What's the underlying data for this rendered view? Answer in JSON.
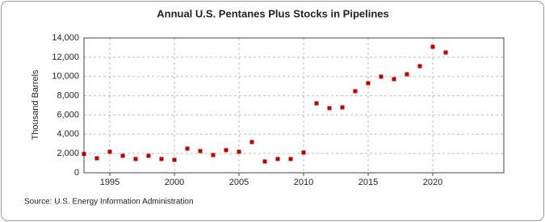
{
  "chart_data": {
    "type": "scatter",
    "title": "Annual U.S. Pentanes Plus Stocks in Pipelines",
    "y_label": "Thousand Barrels",
    "source": "Source: U.S. Energy Information Administration",
    "color": "#c00000",
    "grid": true,
    "x": [
      1993,
      1994,
      1995,
      1996,
      1997,
      1998,
      1999,
      2000,
      2001,
      2002,
      2003,
      2004,
      2005,
      2006,
      2007,
      2008,
      2009,
      2010,
      2011,
      2012,
      2013,
      2014,
      2015,
      2016,
      2017,
      2018,
      2019,
      2020,
      2021
    ],
    "values": [
      1950,
      1500,
      2180,
      1760,
      1430,
      1760,
      1430,
      1340,
      2510,
      2260,
      1840,
      2350,
      2180,
      3190,
      1170,
      1430,
      1430,
      2100,
      7210,
      6710,
      6790,
      8470,
      9300,
      9980,
      9720,
      10230,
      11070,
      13080,
      12490
    ],
    "xlim": [
      1993,
      2025.5
    ],
    "xticks": [
      1995,
      2000,
      2005,
      2010,
      2015,
      2020
    ],
    "ylim": [
      0,
      14000
    ],
    "yticks": [
      0,
      {
        "value": 2000,
        "label": "2,000"
      },
      {
        "value": 4000,
        "label": "4,000"
      },
      {
        "value": 6000,
        "label": "6,000"
      },
      {
        "value": 8000,
        "label": "8,000"
      },
      {
        "value": 10000,
        "label": "10,000"
      },
      {
        "value": 12000,
        "label": "12,000"
      },
      {
        "value": 14000,
        "label": "14,000"
      }
    ]
  }
}
